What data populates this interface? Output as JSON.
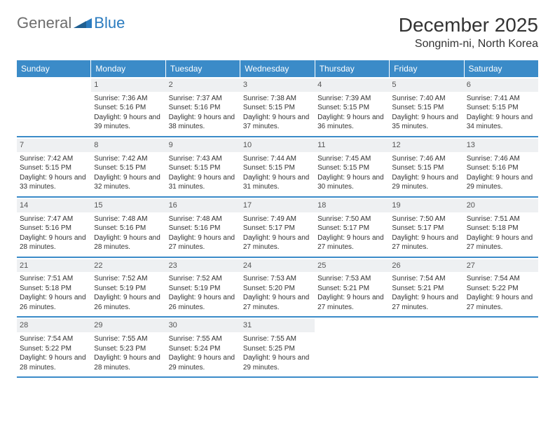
{
  "brand": {
    "part1": "General",
    "part2": "Blue"
  },
  "title": "December 2025",
  "location": "Songnim-ni, North Korea",
  "colors": {
    "header_bg": "#3b8bc8",
    "header_text": "#ffffff",
    "daynum_bg": "#eef0f2",
    "border": "#3b8bc8",
    "logo_gray": "#6d6d6d",
    "logo_blue": "#2a7bbf"
  },
  "weekdays": [
    "Sunday",
    "Monday",
    "Tuesday",
    "Wednesday",
    "Thursday",
    "Friday",
    "Saturday"
  ],
  "weeks": [
    [
      {
        "n": "",
        "sr": "",
        "ss": "",
        "dl": ""
      },
      {
        "n": "1",
        "sr": "7:36 AM",
        "ss": "5:16 PM",
        "dl": "9 hours and 39 minutes."
      },
      {
        "n": "2",
        "sr": "7:37 AM",
        "ss": "5:16 PM",
        "dl": "9 hours and 38 minutes."
      },
      {
        "n": "3",
        "sr": "7:38 AM",
        "ss": "5:15 PM",
        "dl": "9 hours and 37 minutes."
      },
      {
        "n": "4",
        "sr": "7:39 AM",
        "ss": "5:15 PM",
        "dl": "9 hours and 36 minutes."
      },
      {
        "n": "5",
        "sr": "7:40 AM",
        "ss": "5:15 PM",
        "dl": "9 hours and 35 minutes."
      },
      {
        "n": "6",
        "sr": "7:41 AM",
        "ss": "5:15 PM",
        "dl": "9 hours and 34 minutes."
      }
    ],
    [
      {
        "n": "7",
        "sr": "7:42 AM",
        "ss": "5:15 PM",
        "dl": "9 hours and 33 minutes."
      },
      {
        "n": "8",
        "sr": "7:42 AM",
        "ss": "5:15 PM",
        "dl": "9 hours and 32 minutes."
      },
      {
        "n": "9",
        "sr": "7:43 AM",
        "ss": "5:15 PM",
        "dl": "9 hours and 31 minutes."
      },
      {
        "n": "10",
        "sr": "7:44 AM",
        "ss": "5:15 PM",
        "dl": "9 hours and 31 minutes."
      },
      {
        "n": "11",
        "sr": "7:45 AM",
        "ss": "5:15 PM",
        "dl": "9 hours and 30 minutes."
      },
      {
        "n": "12",
        "sr": "7:46 AM",
        "ss": "5:15 PM",
        "dl": "9 hours and 29 minutes."
      },
      {
        "n": "13",
        "sr": "7:46 AM",
        "ss": "5:16 PM",
        "dl": "9 hours and 29 minutes."
      }
    ],
    [
      {
        "n": "14",
        "sr": "7:47 AM",
        "ss": "5:16 PM",
        "dl": "9 hours and 28 minutes."
      },
      {
        "n": "15",
        "sr": "7:48 AM",
        "ss": "5:16 PM",
        "dl": "9 hours and 28 minutes."
      },
      {
        "n": "16",
        "sr": "7:48 AM",
        "ss": "5:16 PM",
        "dl": "9 hours and 27 minutes."
      },
      {
        "n": "17",
        "sr": "7:49 AM",
        "ss": "5:17 PM",
        "dl": "9 hours and 27 minutes."
      },
      {
        "n": "18",
        "sr": "7:50 AM",
        "ss": "5:17 PM",
        "dl": "9 hours and 27 minutes."
      },
      {
        "n": "19",
        "sr": "7:50 AM",
        "ss": "5:17 PM",
        "dl": "9 hours and 27 minutes."
      },
      {
        "n": "20",
        "sr": "7:51 AM",
        "ss": "5:18 PM",
        "dl": "9 hours and 27 minutes."
      }
    ],
    [
      {
        "n": "21",
        "sr": "7:51 AM",
        "ss": "5:18 PM",
        "dl": "9 hours and 26 minutes."
      },
      {
        "n": "22",
        "sr": "7:52 AM",
        "ss": "5:19 PM",
        "dl": "9 hours and 26 minutes."
      },
      {
        "n": "23",
        "sr": "7:52 AM",
        "ss": "5:19 PM",
        "dl": "9 hours and 26 minutes."
      },
      {
        "n": "24",
        "sr": "7:53 AM",
        "ss": "5:20 PM",
        "dl": "9 hours and 27 minutes."
      },
      {
        "n": "25",
        "sr": "7:53 AM",
        "ss": "5:21 PM",
        "dl": "9 hours and 27 minutes."
      },
      {
        "n": "26",
        "sr": "7:54 AM",
        "ss": "5:21 PM",
        "dl": "9 hours and 27 minutes."
      },
      {
        "n": "27",
        "sr": "7:54 AM",
        "ss": "5:22 PM",
        "dl": "9 hours and 27 minutes."
      }
    ],
    [
      {
        "n": "28",
        "sr": "7:54 AM",
        "ss": "5:22 PM",
        "dl": "9 hours and 28 minutes."
      },
      {
        "n": "29",
        "sr": "7:55 AM",
        "ss": "5:23 PM",
        "dl": "9 hours and 28 minutes."
      },
      {
        "n": "30",
        "sr": "7:55 AM",
        "ss": "5:24 PM",
        "dl": "9 hours and 29 minutes."
      },
      {
        "n": "31",
        "sr": "7:55 AM",
        "ss": "5:25 PM",
        "dl": "9 hours and 29 minutes."
      },
      {
        "n": "",
        "sr": "",
        "ss": "",
        "dl": ""
      },
      {
        "n": "",
        "sr": "",
        "ss": "",
        "dl": ""
      },
      {
        "n": "",
        "sr": "",
        "ss": "",
        "dl": ""
      }
    ]
  ],
  "labels": {
    "sunrise": "Sunrise:",
    "sunset": "Sunset:",
    "daylight": "Daylight:"
  }
}
